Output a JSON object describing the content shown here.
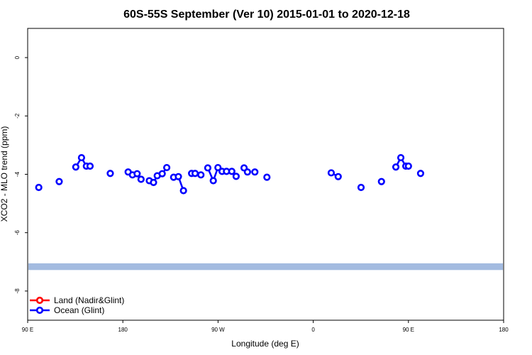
{
  "chart_data": {
    "type": "line",
    "title": "60S-55S September (Ver 10)   2015-01-01 to 2020-12-18",
    "xlabel": "Longitude (deg E)",
    "ylabel": "XCO2 - MLO trend (ppm)",
    "xlim": [
      90,
      450
    ],
    "ylim": [
      -9,
      1
    ],
    "x_ticks": [
      {
        "value": 90,
        "label": "90 E"
      },
      {
        "value": 180,
        "label": "180"
      },
      {
        "value": 270,
        "label": "90 W"
      },
      {
        "value": 360,
        "label": "0"
      },
      {
        "value": 450,
        "label": "90 E"
      },
      {
        "value": 540,
        "label": "180"
      }
    ],
    "y_ticks": [
      {
        "value": 0,
        "label": "0"
      },
      {
        "value": -2,
        "label": "-2"
      },
      {
        "value": -4,
        "label": "-4"
      },
      {
        "value": -6,
        "label": "-6"
      },
      {
        "value": -8,
        "label": "-8"
      }
    ],
    "grid": false,
    "legend_position": "bottom-left",
    "band": {
      "y_min": -7.28,
      "y_max": -7.05,
      "color": "#a3bbe0"
    },
    "series": [
      {
        "name": "Land (Nadir&Glint)",
        "color": "#ff0000",
        "segments": []
      },
      {
        "name": "Ocean (Glint)",
        "color": "#0000ff",
        "segments": [
          [
            [
              100.5,
              -4.45
            ]
          ],
          [
            [
              119.8,
              -4.25
            ]
          ],
          [
            [
              135.5,
              -3.75
            ],
            [
              140.9,
              -3.43
            ],
            [
              145.5,
              -3.72
            ],
            [
              149.0,
              -3.72
            ]
          ],
          [
            [
              168.1,
              -3.97
            ]
          ],
          [
            [
              185.0,
              -3.92
            ],
            [
              189.1,
              -4.02
            ],
            [
              193.5,
              -3.98
            ],
            [
              197.2,
              -4.17
            ]
          ],
          [
            [
              205.0,
              -4.22
            ],
            [
              209.0,
              -4.28
            ],
            [
              212.5,
              -4.05
            ],
            [
              217.2,
              -3.98
            ],
            [
              221.5,
              -3.77
            ]
          ],
          [
            [
              228.0,
              -4.1
            ],
            [
              232.5,
              -4.08
            ],
            [
              237.3,
              -4.56
            ]
          ],
          [
            [
              245.0,
              -3.97
            ],
            [
              248.3,
              -3.97
            ]
          ],
          [
            [
              253.8,
              -4.02
            ]
          ],
          [
            [
              260.3,
              -3.78
            ],
            [
              265.5,
              -4.22
            ],
            [
              269.9,
              -3.77
            ],
            [
              273.8,
              -3.9
            ],
            [
              278.0,
              -3.9
            ],
            [
              283.0,
              -3.9
            ],
            [
              287.1,
              -4.07
            ]
          ],
          [
            [
              294.6,
              -3.78
            ],
            [
              297.8,
              -3.92
            ]
          ],
          [
            [
              304.8,
              -3.92
            ]
          ],
          [
            [
              316.2,
              -4.1
            ]
          ],
          [
            [
              377.0,
              -3.95
            ],
            [
              383.6,
              -4.08
            ]
          ],
          [
            [
              405.2,
              -4.45
            ]
          ],
          [
            [
              424.5,
              -4.25
            ]
          ],
          [
            [
              438.1,
              -3.75
            ],
            [
              442.8,
              -3.43
            ],
            [
              447.5,
              -3.72
            ],
            [
              450.0,
              -3.72
            ]
          ],
          [
            [
              461.5,
              -3.97
            ]
          ]
        ]
      }
    ]
  }
}
